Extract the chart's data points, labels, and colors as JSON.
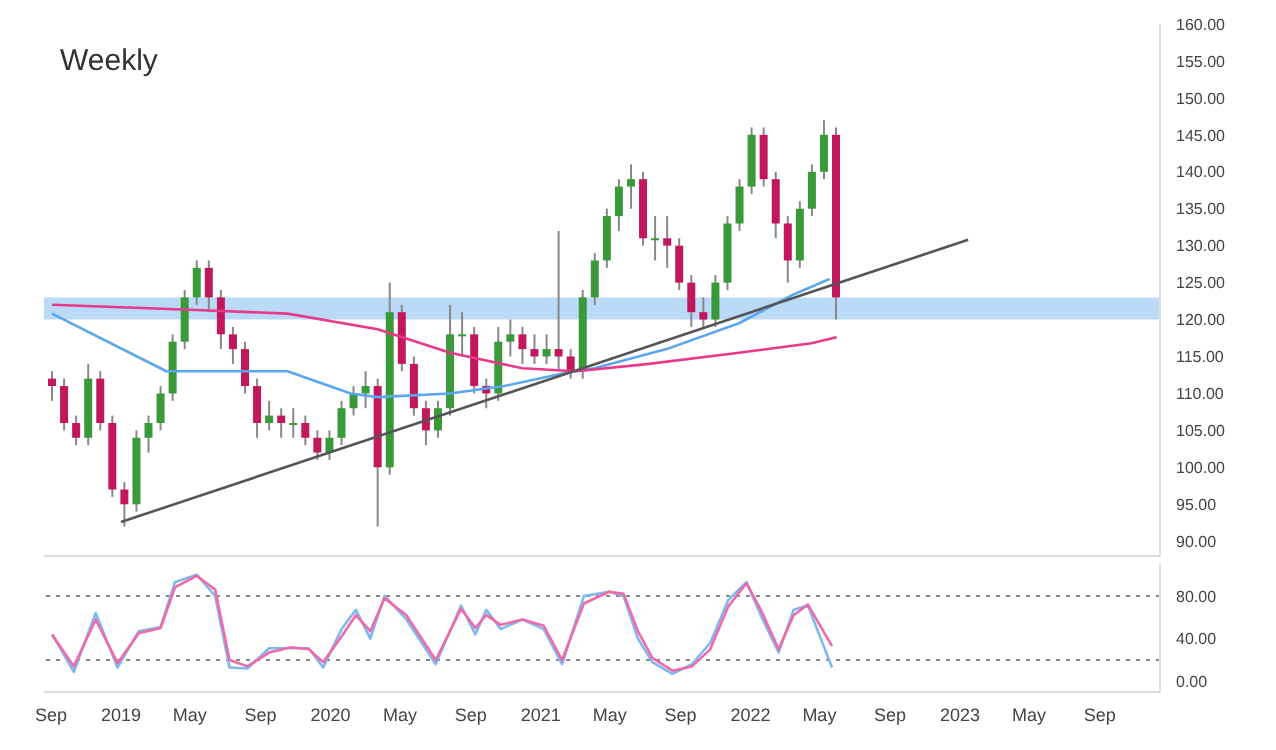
{
  "chart_data": [
    {
      "type": "candlestick",
      "title": "Weekly",
      "tick_labels": "y",
      "x": [
        "2018-09-03",
        "2018-09-24",
        "2018-10-15",
        "2018-11-05",
        "2018-11-26",
        "2018-12-17",
        "2019-01-07",
        "2019-01-28",
        "2019-02-18",
        "2019-03-11",
        "2019-04-01",
        "2019-04-22",
        "2019-05-13",
        "2019-06-03",
        "2019-06-24",
        "2019-07-15",
        "2019-08-05",
        "2019-08-26",
        "2019-09-16",
        "2019-10-07",
        "2019-10-28",
        "2019-11-18",
        "2019-12-09",
        "2019-12-30",
        "2020-01-20",
        "2020-02-10",
        "2020-03-02",
        "2020-03-23",
        "2020-04-13",
        "2020-05-04",
        "2020-05-25",
        "2020-06-15",
        "2020-07-06",
        "2020-07-27",
        "2020-08-17",
        "2020-09-07",
        "2020-09-28",
        "2020-10-19",
        "2020-11-09",
        "2020-11-30",
        "2020-12-21",
        "2021-01-11",
        "2021-02-01",
        "2021-02-22",
        "2021-03-15",
        "2021-04-05",
        "2021-04-26",
        "2021-05-17",
        "2021-06-07",
        "2021-06-28",
        "2021-07-19",
        "2021-08-09",
        "2021-08-30",
        "2021-09-20",
        "2021-10-11",
        "2021-11-01",
        "2021-11-22",
        "2021-12-13",
        "2022-01-03",
        "2022-01-24",
        "2022-02-14",
        "2022-03-07",
        "2022-03-28",
        "2022-04-18",
        "2022-05-09",
        "2022-05-30"
      ],
      "ohlc": [
        [
          112,
          113,
          109,
          111
        ],
        [
          111,
          112,
          105,
          106
        ],
        [
          106,
          107,
          103,
          104
        ],
        [
          104,
          114,
          103,
          112
        ],
        [
          112,
          113,
          105,
          106
        ],
        [
          106,
          107,
          96,
          97
        ],
        [
          97,
          98,
          92,
          95
        ],
        [
          95,
          105,
          94,
          104
        ],
        [
          104,
          107,
          102,
          106
        ],
        [
          106,
          111,
          105,
          110
        ],
        [
          110,
          118,
          109,
          117
        ],
        [
          117,
          124,
          116,
          123
        ],
        [
          123,
          128,
          122,
          127
        ],
        [
          127,
          128,
          121,
          123
        ],
        [
          123,
          124,
          116,
          118
        ],
        [
          118,
          119,
          114,
          116
        ],
        [
          116,
          117,
          110,
          111
        ],
        [
          111,
          112,
          104,
          106
        ],
        [
          106,
          109,
          105,
          107
        ],
        [
          107,
          108,
          104,
          106
        ],
        [
          106,
          108,
          104,
          106
        ],
        [
          106,
          107,
          103,
          104
        ],
        [
          104,
          105,
          101,
          102
        ],
        [
          102,
          105,
          101,
          104
        ],
        [
          104,
          109,
          103,
          108
        ],
        [
          108,
          111,
          107,
          110
        ],
        [
          110,
          113,
          108,
          111
        ],
        [
          111,
          112,
          92,
          100
        ],
        [
          100,
          125,
          99,
          121
        ],
        [
          121,
          122,
          113,
          114
        ],
        [
          114,
          115,
          107,
          108
        ],
        [
          108,
          109,
          103,
          105
        ],
        [
          105,
          109,
          104,
          108
        ],
        [
          108,
          122,
          107,
          118
        ],
        [
          118,
          121,
          115,
          118
        ],
        [
          118,
          119,
          110,
          111
        ],
        [
          111,
          112,
          108,
          110
        ],
        [
          110,
          119,
          109,
          117
        ],
        [
          117,
          120,
          115,
          118
        ],
        [
          118,
          119,
          114,
          116
        ],
        [
          116,
          118,
          114,
          115
        ],
        [
          115,
          118,
          114,
          116
        ],
        [
          116,
          132,
          113,
          115
        ],
        [
          115,
          116,
          112,
          113
        ],
        [
          113,
          124,
          112,
          123
        ],
        [
          123,
          129,
          122,
          128
        ],
        [
          128,
          135,
          127,
          134
        ],
        [
          134,
          139,
          132,
          138
        ],
        [
          138,
          141,
          135,
          139
        ],
        [
          139,
          140,
          130,
          131
        ],
        [
          131,
          134,
          128,
          131
        ],
        [
          131,
          134,
          127,
          130
        ],
        [
          130,
          131,
          124,
          125
        ],
        [
          125,
          126,
          119,
          121
        ],
        [
          121,
          123,
          119,
          120
        ],
        [
          120,
          126,
          119,
          125
        ],
        [
          125,
          134,
          124,
          133
        ],
        [
          133,
          139,
          132,
          138
        ],
        [
          138,
          146,
          137,
          145
        ],
        [
          145,
          146,
          138,
          139
        ],
        [
          139,
          140,
          131,
          133
        ],
        [
          133,
          134,
          125,
          128
        ],
        [
          128,
          136,
          127,
          135
        ],
        [
          135,
          141,
          134,
          140
        ],
        [
          140,
          147,
          139,
          145
        ],
        [
          145,
          146,
          120,
          123
        ]
      ],
      "colors": [
        "#c2185b",
        "#c2185b",
        "#c2185b",
        "#3a9a3a",
        "#c2185b",
        "#c2185b",
        "#c2185b",
        "#3a9a3a",
        "#3a9a3a",
        "#3a9a3a",
        "#3a9a3a",
        "#3a9a3a",
        "#3a9a3a",
        "#c2185b",
        "#c2185b",
        "#c2185b",
        "#c2185b",
        "#c2185b",
        "#3a9a3a",
        "#c2185b",
        "#3a9a3a",
        "#c2185b",
        "#c2185b",
        "#3a9a3a",
        "#3a9a3a",
        "#3a9a3a",
        "#3a9a3a",
        "#c2185b",
        "#3a9a3a",
        "#c2185b",
        "#c2185b",
        "#c2185b",
        "#3a9a3a",
        "#3a9a3a",
        "#3a9a3a",
        "#c2185b",
        "#c2185b",
        "#3a9a3a",
        "#3a9a3a",
        "#c2185b",
        "#c2185b",
        "#3a9a3a",
        "#c2185b",
        "#c2185b",
        "#3a9a3a",
        "#3a9a3a",
        "#3a9a3a",
        "#3a9a3a",
        "#3a9a3a",
        "#c2185b",
        "#3a9a3a",
        "#c2185b",
        "#c2185b",
        "#c2185b",
        "#c2185b",
        "#3a9a3a",
        "#3a9a3a",
        "#3a9a3a",
        "#3a9a3a",
        "#c2185b",
        "#c2185b",
        "#c2185b",
        "#3a9a3a",
        "#3a9a3a",
        "#3a9a3a",
        "#c2185b"
      ],
      "series": [
        {
          "type": "line",
          "color": "#5aa7f0",
          "x": [
            "2018-09-03",
            "2019-03-21",
            "2019-10-18",
            "2020-02-05",
            "2020-03-23",
            "2020-07-27",
            "2020-10-29",
            "2021-02-26",
            "2021-04-04",
            "2021-08-08",
            "2021-12-12",
            "2022-03-17",
            "2022-05-19"
          ],
          "values": [
            120.8,
            113,
            113,
            110,
            109.5,
            110,
            111,
            113,
            113.4,
            116,
            119.5,
            123.4,
            125.5
          ]
        },
        {
          "type": "line",
          "color": "#e8398a",
          "x": [
            "2018-09-03",
            "2019-05-13",
            "2019-10-18",
            "2020-03-23",
            "2020-07-27",
            "2020-11-30",
            "2021-03-04",
            "2021-07-08",
            "2021-12-12",
            "2022-04-17",
            "2022-05-31"
          ],
          "values": [
            122,
            121.3,
            120.8,
            118.7,
            115.5,
            113.4,
            113,
            114,
            115.5,
            116.8,
            117.6
          ]
        },
        {
          "type": "line",
          "color": "#555555",
          "x": [
            "2019-01-01",
            "2023-01-15"
          ],
          "values": [
            92.6,
            130.8
          ]
        }
      ],
      "bands": [
        {
          "axis": "y",
          "from": 120,
          "to": 123,
          "color": "#bbdaf8"
        }
      ],
      "xlim": [
        "2018-08-20",
        "2023-12-15"
      ],
      "ylim": [
        88,
        160
      ],
      "yticks": [
        {
          "value": 90,
          "label": "90.00"
        },
        {
          "value": 95,
          "label": "95.00"
        },
        {
          "value": 100,
          "label": "100.00"
        },
        {
          "value": 105,
          "label": "105.00"
        },
        {
          "value": 110,
          "label": "110.00"
        },
        {
          "value": 115,
          "label": "115.00"
        },
        {
          "value": 120,
          "label": "120.00"
        },
        {
          "value": 125,
          "label": "125.00"
        },
        {
          "value": 130,
          "label": "130.00"
        },
        {
          "value": 135,
          "label": "135.00"
        },
        {
          "value": 140,
          "label": "140.00"
        },
        {
          "value": 145,
          "label": "145.00"
        },
        {
          "value": 150,
          "label": "150.00"
        },
        {
          "value": 155,
          "label": "155.00"
        },
        {
          "value": 160,
          "label": "160.00"
        }
      ]
    },
    {
      "type": "line",
      "x": [
        "2018-09-03",
        "2018-10-11",
        "2018-11-18",
        "2018-12-26",
        "2019-02-01",
        "2019-03-11",
        "2019-04-05",
        "2019-05-13",
        "2019-06-14",
        "2019-07-09",
        "2019-08-09",
        "2019-09-16",
        "2019-10-24",
        "2019-11-24",
        "2019-12-19",
        "2020-01-20",
        "2020-02-14",
        "2020-03-10",
        "2020-04-04",
        "2020-05-12",
        "2020-07-02",
        "2020-08-15",
        "2020-09-09",
        "2020-09-28",
        "2020-10-23",
        "2020-11-30",
        "2021-01-06",
        "2021-02-07",
        "2021-03-17",
        "2021-04-30",
        "2021-05-25",
        "2021-06-19",
        "2021-07-14",
        "2021-08-18",
        "2021-09-21",
        "2021-10-23",
        "2021-11-23",
        "2021-12-25",
        "2022-01-19",
        "2022-02-19",
        "2022-03-17",
        "2022-04-11",
        "2022-05-23"
      ],
      "series": [
        {
          "color": "#7fb8f0",
          "values": [
            44,
            9,
            64,
            13,
            47,
            51,
            93,
            100,
            80,
            13,
            12,
            31,
            31,
            31,
            13,
            49,
            67,
            40,
            80,
            58,
            16,
            71,
            44,
            67,
            49,
            58,
            49,
            16,
            80,
            84,
            80,
            40,
            18,
            7,
            16,
            36,
            76,
            93,
            62,
            27,
            67,
            71,
            13
          ]
        },
        {
          "color": "#f06aa8",
          "values": [
            44,
            14,
            58,
            17,
            45,
            50,
            88,
            99,
            86,
            20,
            14,
            27,
            32,
            30,
            18,
            42,
            62,
            47,
            78,
            62,
            20,
            68,
            50,
            62,
            53,
            58,
            52,
            20,
            73,
            84,
            82,
            47,
            22,
            10,
            14,
            30,
            70,
            92,
            67,
            30,
            62,
            72,
            33
          ]
        }
      ],
      "ref_lines": [
        {
          "axis": "y",
          "value": 80,
          "color": "#888888",
          "line_style": "dotted"
        },
        {
          "axis": "y",
          "value": 20,
          "color": "#888888",
          "line_style": "dotted"
        }
      ],
      "xlim": [
        "2018-08-20",
        "2023-12-15"
      ],
      "xticks": [
        {
          "value": "2018-09-01",
          "label": "Sep"
        },
        {
          "value": "2019-01-01",
          "label": "2019"
        },
        {
          "value": "2019-05-01",
          "label": "May"
        },
        {
          "value": "2019-09-01",
          "label": "Sep"
        },
        {
          "value": "2020-01-01",
          "label": "2020"
        },
        {
          "value": "2020-05-01",
          "label": "May"
        },
        {
          "value": "2020-09-01",
          "label": "Sep"
        },
        {
          "value": "2021-01-01",
          "label": "2021"
        },
        {
          "value": "2021-05-01",
          "label": "May"
        },
        {
          "value": "2021-09-01",
          "label": "Sep"
        },
        {
          "value": "2022-01-01",
          "label": "2022"
        },
        {
          "value": "2022-05-01",
          "label": "May"
        },
        {
          "value": "2022-09-01",
          "label": "Sep"
        },
        {
          "value": "2023-01-01",
          "label": "2023"
        },
        {
          "value": "2023-05-01",
          "label": "May"
        },
        {
          "value": "2023-09-01",
          "label": "Sep"
        }
      ],
      "ylim": [
        -10,
        110
      ],
      "yticks": [
        {
          "value": 0,
          "label": "0.00"
        },
        {
          "value": 40,
          "label": "40.00"
        },
        {
          "value": 80,
          "label": "80.00"
        }
      ]
    }
  ]
}
